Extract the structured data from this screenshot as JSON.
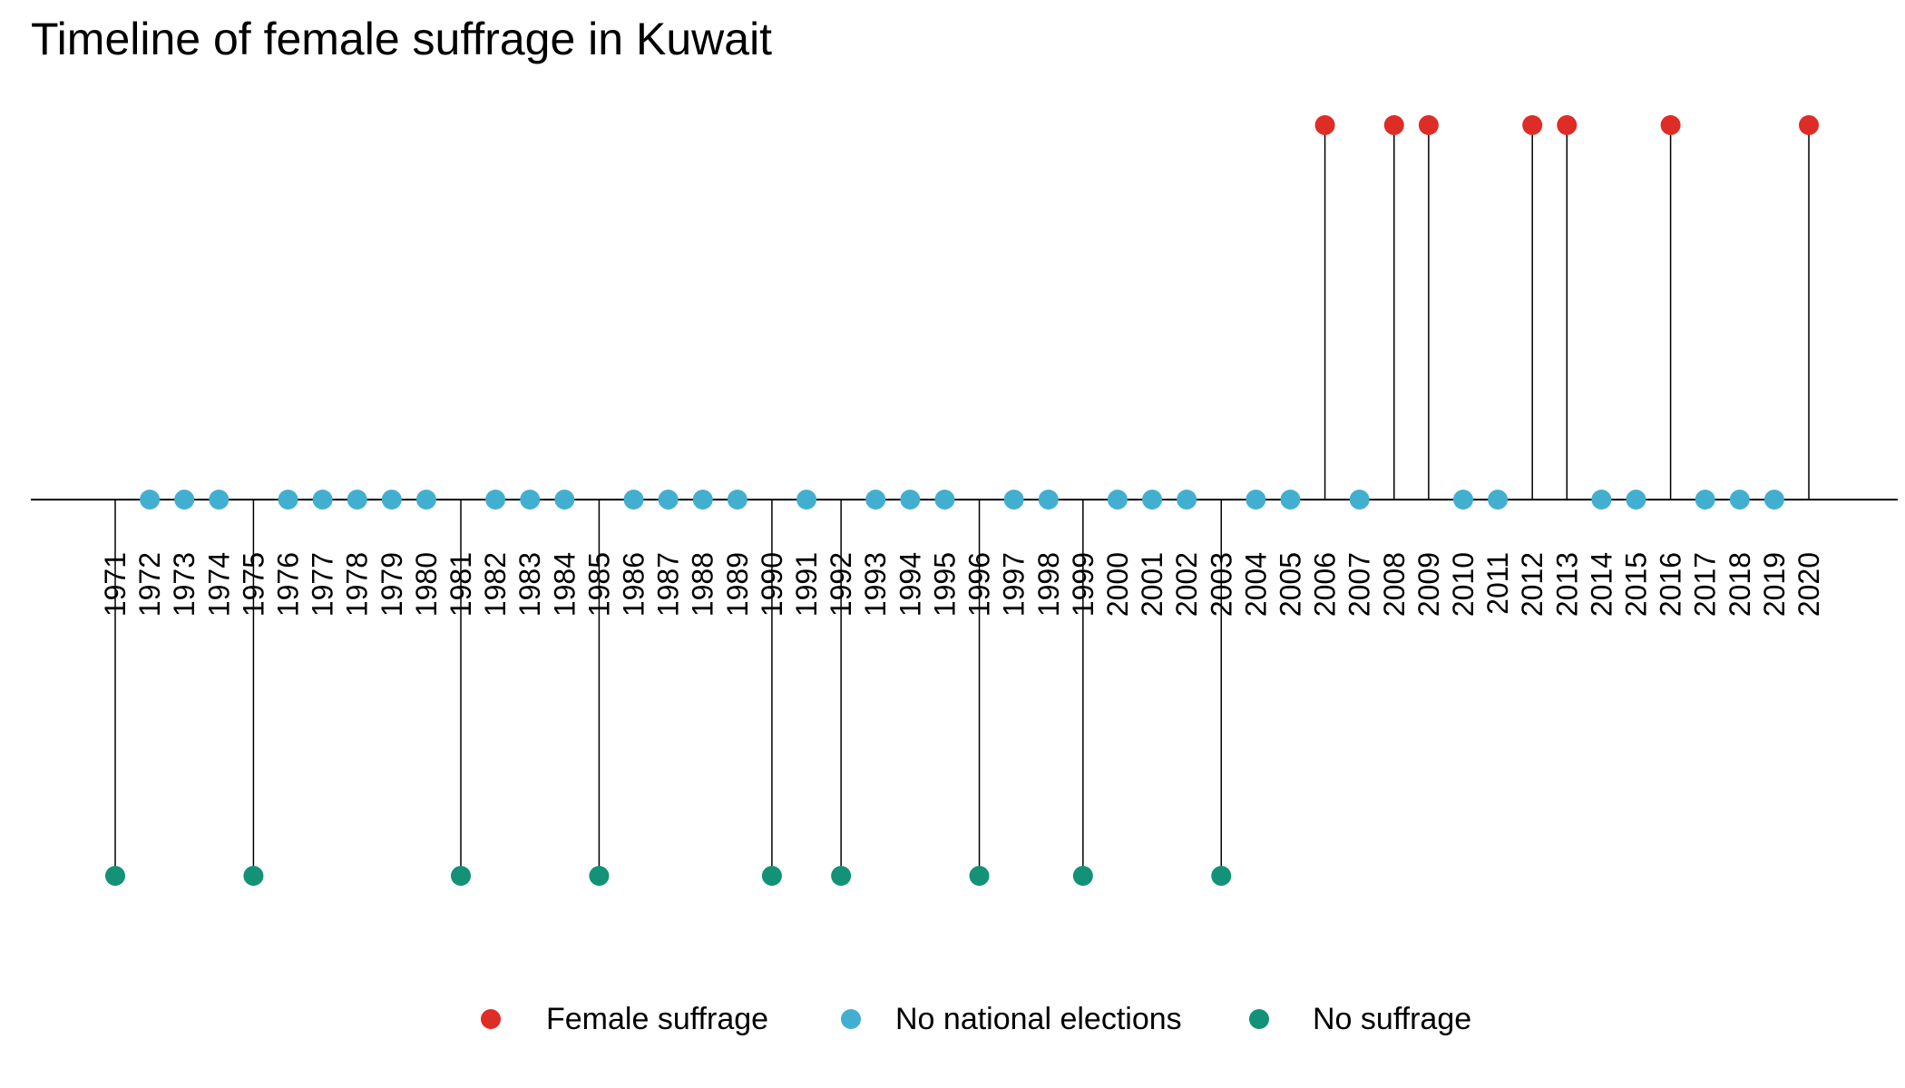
{
  "chart_data": {
    "type": "lollipop-timeline",
    "title": "Timeline of female suffrage in Kuwait",
    "xlabel": "",
    "ylabel": "",
    "grid": false,
    "legend_position": "bottom",
    "categories_order": [
      "Female suffrage",
      "No national elections",
      "No suffrage"
    ],
    "colors": {
      "Female suffrage": "#de2d26",
      "No national elections": "#43afd0",
      "No suffrage": "#139277"
    },
    "levels": {
      "Female suffrage": 1,
      "No national elections": 0,
      "No suffrage": -1
    },
    "points": [
      {
        "year": 1971,
        "category": "No suffrage"
      },
      {
        "year": 1972,
        "category": "No national elections"
      },
      {
        "year": 1973,
        "category": "No national elections"
      },
      {
        "year": 1974,
        "category": "No national elections"
      },
      {
        "year": 1975,
        "category": "No suffrage"
      },
      {
        "year": 1976,
        "category": "No national elections"
      },
      {
        "year": 1977,
        "category": "No national elections"
      },
      {
        "year": 1978,
        "category": "No national elections"
      },
      {
        "year": 1979,
        "category": "No national elections"
      },
      {
        "year": 1980,
        "category": "No national elections"
      },
      {
        "year": 1981,
        "category": "No suffrage"
      },
      {
        "year": 1982,
        "category": "No national elections"
      },
      {
        "year": 1983,
        "category": "No national elections"
      },
      {
        "year": 1984,
        "category": "No national elections"
      },
      {
        "year": 1985,
        "category": "No suffrage"
      },
      {
        "year": 1986,
        "category": "No national elections"
      },
      {
        "year": 1987,
        "category": "No national elections"
      },
      {
        "year": 1988,
        "category": "No national elections"
      },
      {
        "year": 1989,
        "category": "No national elections"
      },
      {
        "year": 1990,
        "category": "No suffrage"
      },
      {
        "year": 1991,
        "category": "No national elections"
      },
      {
        "year": 1992,
        "category": "No suffrage"
      },
      {
        "year": 1993,
        "category": "No national elections"
      },
      {
        "year": 1994,
        "category": "No national elections"
      },
      {
        "year": 1995,
        "category": "No national elections"
      },
      {
        "year": 1996,
        "category": "No suffrage"
      },
      {
        "year": 1997,
        "category": "No national elections"
      },
      {
        "year": 1998,
        "category": "No national elections"
      },
      {
        "year": 1999,
        "category": "No suffrage"
      },
      {
        "year": 2000,
        "category": "No national elections"
      },
      {
        "year": 2001,
        "category": "No national elections"
      },
      {
        "year": 2002,
        "category": "No national elections"
      },
      {
        "year": 2003,
        "category": "No suffrage"
      },
      {
        "year": 2004,
        "category": "No national elections"
      },
      {
        "year": 2005,
        "category": "No national elections"
      },
      {
        "year": 2006,
        "category": "Female suffrage"
      },
      {
        "year": 2007,
        "category": "No national elections"
      },
      {
        "year": 2008,
        "category": "Female suffrage"
      },
      {
        "year": 2009,
        "category": "Female suffrage"
      },
      {
        "year": 2010,
        "category": "No national elections"
      },
      {
        "year": 2011,
        "category": "No national elections"
      },
      {
        "year": 2012,
        "category": "Female suffrage"
      },
      {
        "year": 2013,
        "category": "Female suffrage"
      },
      {
        "year": 2014,
        "category": "No national elections"
      },
      {
        "year": 2015,
        "category": "No national elections"
      },
      {
        "year": 2016,
        "category": "Female suffrage"
      },
      {
        "year": 2017,
        "category": "No national elections"
      },
      {
        "year": 2018,
        "category": "No national elections"
      },
      {
        "year": 2019,
        "category": "No national elections"
      },
      {
        "year": 2020,
        "category": "Female suffrage"
      }
    ],
    "legend": [
      "Female suffrage",
      "No national elections",
      "No suffrage"
    ]
  }
}
